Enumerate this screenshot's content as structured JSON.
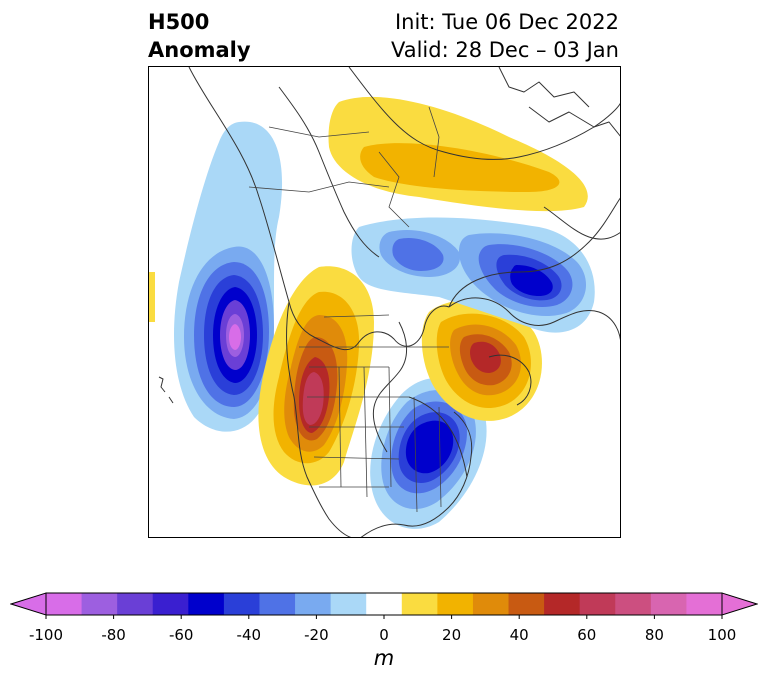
{
  "header": {
    "left_line1": "H500",
    "left_line2": "Anomaly",
    "right_line1": "Init: Tue 06 Dec 2022",
    "right_line2": "Valid: 28 Dec – 03 Jan"
  },
  "colorbar": {
    "unit": "m",
    "ticks": [
      "-100",
      "-80",
      "-60",
      "-40",
      "-20",
      "0",
      "20",
      "40",
      "60",
      "80",
      "100"
    ],
    "min": -100,
    "max": 100,
    "extend": "both",
    "levels": [
      -100,
      -90,
      -80,
      -70,
      -60,
      -50,
      -40,
      -30,
      -20,
      -10,
      10,
      20,
      30,
      40,
      50,
      60,
      70,
      80,
      90,
      100
    ],
    "colors": [
      "#d86de8",
      "#9d5fe0",
      "#6a3fd6",
      "#3a1fd0",
      "#0000cc",
      "#2a3fd8",
      "#4f72e6",
      "#79aaf0",
      "#aad8f7",
      "#ffffff",
      "#fadc40",
      "#f2b300",
      "#e08b0a",
      "#c85a12",
      "#b42828",
      "#c03a58",
      "#cc4f80",
      "#d865b0",
      "#e46fd6"
    ],
    "under_color": "#d86de8",
    "over_color": "#e46fd6"
  },
  "map": {
    "projection": "polar-stereographic",
    "region": "North America / North Pacific / Arctic",
    "features": [
      "coastlines",
      "country-borders",
      "state-borders"
    ],
    "anomaly_centers": [
      {
        "name": "gulf-of-alaska-trough",
        "value": -100
      },
      {
        "name": "western-us-ridge",
        "value": 70
      },
      {
        "name": "eastern-us-trough",
        "value": -60
      },
      {
        "name": "greenland-ridge",
        "value": 60
      },
      {
        "name": "eurasian-arctic-trough",
        "value": -50
      },
      {
        "name": "siberian-high-lat-ridge",
        "value": 30
      }
    ]
  }
}
